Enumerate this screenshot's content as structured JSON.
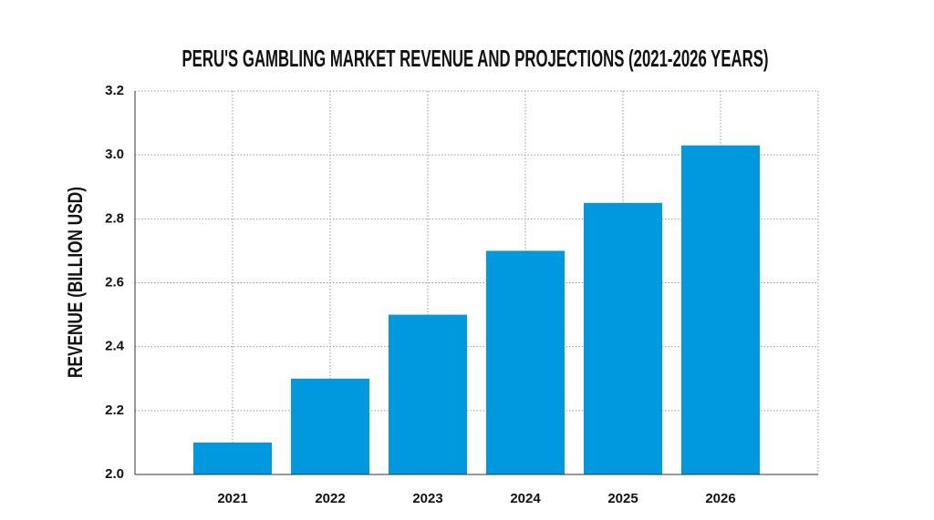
{
  "chart_data": {
    "type": "bar",
    "title": "PERU'S GAMBLING MARKET REVENUE AND PROJECTIONS (2021-2026 YEARS)",
    "y_label": "REVENUE (BILLION USD)",
    "categories": [
      "2021",
      "2022",
      "2023",
      "2024",
      "2025",
      "2026"
    ],
    "values": [
      2.1,
      2.3,
      2.5,
      2.7,
      2.85,
      3.03
    ],
    "color": "#0099e0",
    "ylim": [
      2,
      3.2
    ],
    "yticks": [
      {
        "value": 2,
        "label": "2.0"
      },
      2.2,
      2.4,
      2.6,
      2.8,
      {
        "value": 3,
        "label": "3.0"
      },
      3.2
    ],
    "grid": true
  }
}
